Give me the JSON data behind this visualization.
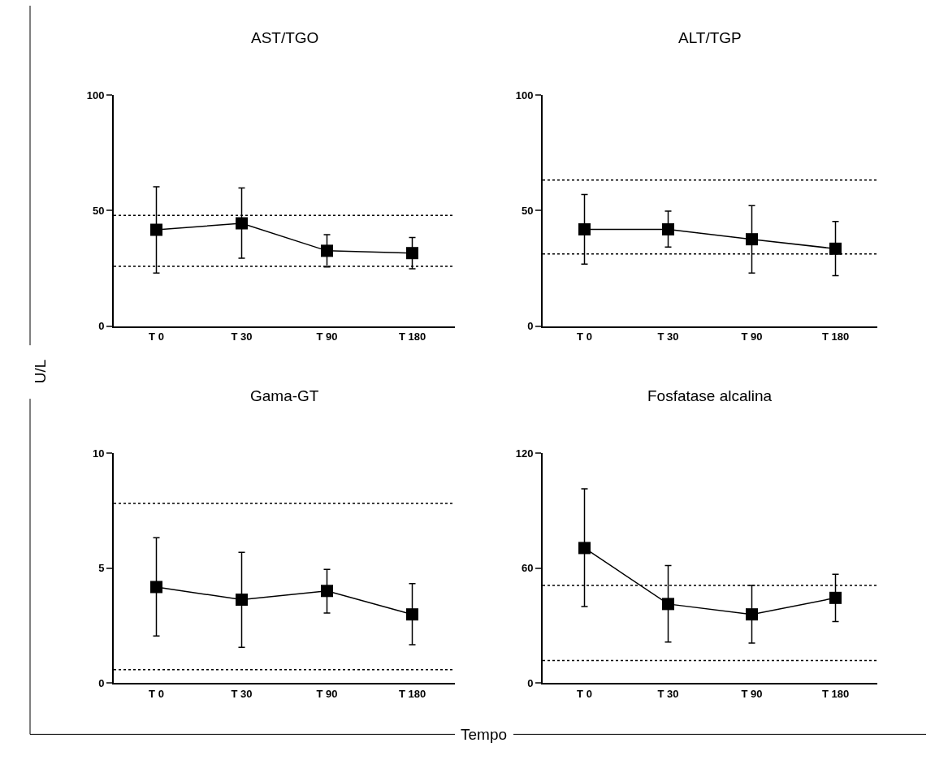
{
  "chart_data": [
    {
      "type": "line",
      "title": "AST/TGO",
      "ylabel": "U/L",
      "categories": [
        "T 0",
        "T 30",
        "T 90",
        "T 180"
      ],
      "series": [
        {
          "color": "#000000",
          "values": [
            41.7,
            44.5,
            32.6,
            31.6
          ],
          "errors": [
            [
              23.0,
              60.3
            ],
            [
              29.4,
              59.8
            ],
            [
              25.6,
              39.6
            ],
            [
              24.8,
              38.4
            ]
          ]
        }
      ],
      "ylim": [
        0,
        100
      ],
      "yticks": [
        0,
        50,
        100
      ],
      "ref_lines": [
        {
          "axis": "y",
          "value": 47.9,
          "line_style": "dotted",
          "color": "#000000"
        },
        {
          "axis": "y",
          "value": 25.9,
          "line_style": "dotted",
          "color": "#000000"
        }
      ],
      "marker": "square",
      "line_style": "solid"
    },
    {
      "type": "line",
      "title": "ALT/TGP",
      "categories": [
        "T 0",
        "T 30",
        "T 90",
        "T 180"
      ],
      "series": [
        {
          "color": "#000000",
          "values": [
            41.9,
            41.9,
            37.6,
            33.5
          ],
          "errors": [
            [
              26.8,
              57.0
            ],
            [
              34.2,
              49.8
            ],
            [
              23.0,
              52.2
            ],
            [
              21.8,
              45.3
            ]
          ]
        }
      ],
      "ylim": [
        0,
        100
      ],
      "yticks": [
        0,
        50,
        100
      ],
      "ref_lines": [
        {
          "axis": "y",
          "value": 63.2,
          "line_style": "dotted",
          "color": "#000000"
        },
        {
          "axis": "y",
          "value": 31.2,
          "line_style": "dotted",
          "color": "#000000"
        }
      ],
      "marker": "square",
      "line_style": "solid"
    },
    {
      "type": "line",
      "title": "Gama-GT",
      "xlabel": "Tempo",
      "categories": [
        "T 0",
        "T 30",
        "T 90",
        "T 180"
      ],
      "series": [
        {
          "color": "#000000",
          "values": [
            4.18,
            3.63,
            4.01,
            2.99
          ],
          "errors": [
            [
              2.05,
              6.32
            ],
            [
              1.56,
              5.69
            ],
            [
              3.05,
              4.95
            ],
            [
              1.67,
              4.33
            ]
          ]
        }
      ],
      "ylim": [
        0,
        10
      ],
      "yticks": [
        0,
        5,
        10
      ],
      "ref_lines": [
        {
          "axis": "y",
          "value": 7.81,
          "line_style": "dotted",
          "color": "#000000"
        },
        {
          "axis": "y",
          "value": 0.59,
          "line_style": "dotted",
          "color": "#000000"
        }
      ],
      "marker": "square",
      "line_style": "solid"
    },
    {
      "type": "line",
      "title": "Fosfatase alcalina",
      "categories": [
        "T 0",
        "T 30",
        "T 90",
        "T 180"
      ],
      "series": [
        {
          "color": "#000000",
          "values": [
            70.5,
            41.3,
            35.9,
            44.5
          ],
          "errors": [
            [
              40.0,
              101.4
            ],
            [
              21.5,
              61.4
            ],
            [
              20.9,
              51.0
            ],
            [
              32.1,
              56.8
            ]
          ]
        }
      ],
      "ylim": [
        0,
        120
      ],
      "yticks": [
        0,
        60,
        120
      ],
      "ref_lines": [
        {
          "axis": "y",
          "value": 51.0,
          "line_style": "dotted",
          "color": "#000000"
        },
        {
          "axis": "y",
          "value": 11.8,
          "line_style": "dotted",
          "color": "#000000"
        }
      ],
      "marker": "square",
      "line_style": "solid"
    }
  ]
}
